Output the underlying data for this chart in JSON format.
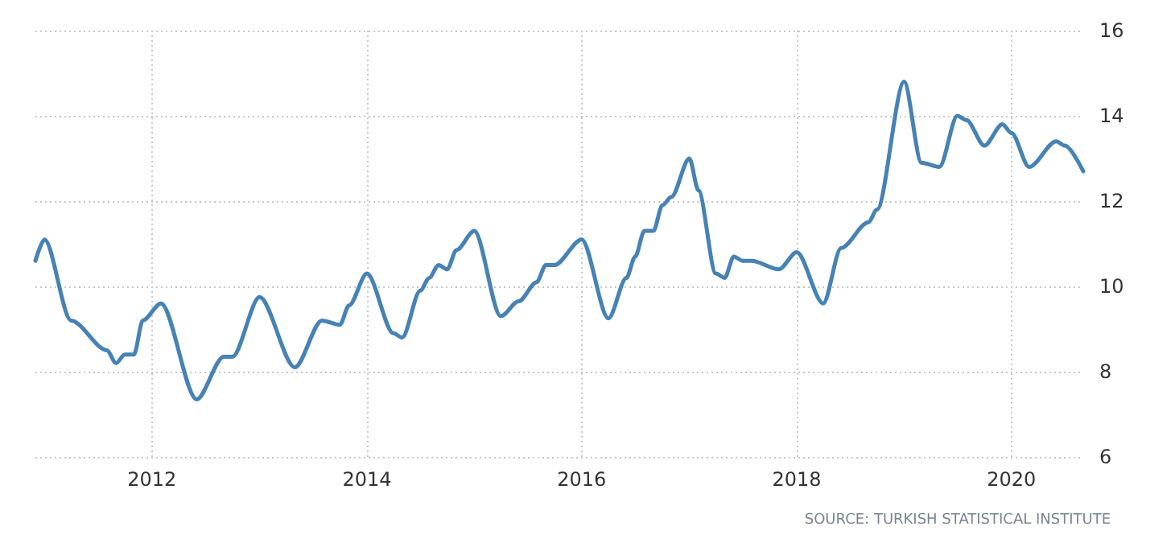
{
  "chart_data": {
    "type": "line",
    "annotations": [
      "SOURCE: TURKISH STATISTICAL INSTITUTE"
    ],
    "x": [
      "2010-12",
      "2011-01",
      "2011-04",
      "2011-08",
      "2011-09",
      "2011-10",
      "2011-11",
      "2011-12",
      "2012-02",
      "2012-06",
      "2012-09",
      "2012-10",
      "2013-01",
      "2013-05",
      "2013-08",
      "2013-10",
      "2013-11",
      "2014-01",
      "2014-04",
      "2014-05",
      "2014-07",
      "2014-08",
      "2014-09",
      "2014-10",
      "2014-11",
      "2015-01",
      "2015-04",
      "2015-06",
      "2015-08",
      "2015-09",
      "2015-10",
      "2016-01",
      "2016-04",
      "2016-06",
      "2016-07",
      "2016-08",
      "2016-09",
      "2016-10",
      "2016-11",
      "2017-01",
      "2017-02",
      "2017-04",
      "2017-05",
      "2017-06",
      "2017-07",
      "2017-08",
      "2017-11",
      "2018-01",
      "2018-04",
      "2018-06",
      "2018-09",
      "2018-10",
      "2019-01",
      "2019-03",
      "2019-05",
      "2019-07",
      "2019-08",
      "2019-10",
      "2019-12",
      "2020-01",
      "2020-03",
      "2020-06",
      "2020-07",
      "2020-09"
    ],
    "series": [
      {
        "color": "#4682b4",
        "values": [
          10.6,
          11.1,
          9.2,
          8.5,
          8.2,
          8.4,
          8.4,
          9.2,
          9.6,
          7.35,
          8.35,
          8.35,
          9.75,
          8.1,
          9.2,
          9.1,
          9.55,
          10.3,
          8.9,
          8.8,
          9.9,
          10.2,
          10.5,
          10.4,
          10.85,
          11.3,
          9.3,
          9.65,
          10.1,
          10.5,
          10.5,
          11.1,
          9.25,
          10.2,
          10.7,
          11.3,
          11.3,
          11.9,
          12.1,
          13.0,
          12.25,
          10.3,
          10.2,
          10.7,
          10.6,
          10.6,
          10.4,
          10.8,
          9.6,
          10.9,
          11.5,
          11.8,
          14.8,
          12.9,
          12.8,
          14.0,
          13.9,
          13.3,
          13.8,
          13.6,
          12.8,
          13.4,
          13.3,
          12.7
        ]
      }
    ],
    "xlim": [
      "2010-12",
      "2020-09"
    ],
    "xticks": [
      "2012",
      "2014",
      "2016",
      "2018",
      "2020"
    ],
    "ylim": [
      6,
      16
    ],
    "yticks": [
      6,
      8,
      10,
      12,
      14,
      16
    ],
    "grid": true,
    "marker": "none",
    "line_style": "solid"
  }
}
